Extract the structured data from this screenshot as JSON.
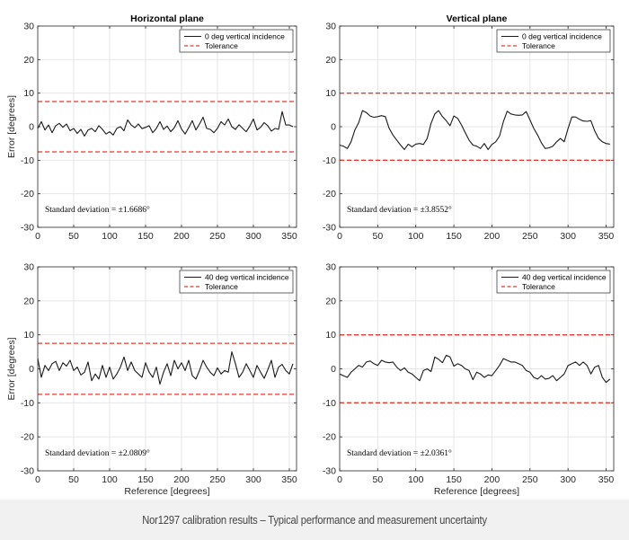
{
  "caption": "Nor1297 calibration results – Typical performance and measurement uncertainty",
  "colors": {
    "series": "#1a1a1a",
    "tolerance": "#e03c31",
    "grid": "#e6e6e6",
    "axis": "#262626",
    "caption_bg": "#f1f1f1"
  },
  "chart_data": [
    {
      "type": "line",
      "title": "Horizontal plane",
      "xlabel": "",
      "ylabel": "Error [degrees]",
      "xlim": [
        0,
        360
      ],
      "ylim": [
        -30,
        30
      ],
      "xticks": [
        0,
        50,
        100,
        150,
        200,
        250,
        300,
        350
      ],
      "yticks": [
        -30,
        -20,
        -10,
        0,
        10,
        20,
        30
      ],
      "grid": true,
      "legend_position": "top-right",
      "annotation": "Standard deviation = ±1.6686°",
      "series": [
        {
          "name": "0 deg vertical incidence",
          "style": "solid",
          "x": [
            0,
            5,
            10,
            15,
            20,
            25,
            30,
            35,
            40,
            45,
            50,
            55,
            60,
            65,
            70,
            75,
            80,
            85,
            90,
            95,
            100,
            105,
            110,
            115,
            120,
            125,
            130,
            135,
            140,
            145,
            150,
            155,
            160,
            165,
            170,
            175,
            180,
            185,
            190,
            195,
            200,
            205,
            210,
            215,
            220,
            225,
            230,
            235,
            240,
            245,
            250,
            255,
            260,
            265,
            270,
            275,
            280,
            285,
            290,
            295,
            300,
            305,
            310,
            315,
            320,
            325,
            330,
            335,
            340,
            345,
            350,
            355
          ],
          "y": [
            -0.5,
            1.5,
            -1.0,
            0.5,
            -1.8,
            0.3,
            1.0,
            -0.2,
            0.8,
            -1.2,
            -0.5,
            -2.0,
            -0.8,
            -2.8,
            -1.0,
            -0.5,
            -1.5,
            0.3,
            -0.8,
            -2.2,
            -1.5,
            -2.5,
            -0.5,
            0.0,
            -1.2,
            2.0,
            0.5,
            -0.3,
            0.8,
            -0.6,
            -0.2,
            0.3,
            -1.8,
            -0.5,
            1.5,
            -0.8,
            0.2,
            -1.5,
            -0.3,
            1.8,
            -0.7,
            -2.2,
            -0.3,
            1.8,
            -1.0,
            0.8,
            2.8,
            -0.5,
            -0.8,
            -1.8,
            -0.5,
            1.5,
            0.5,
            2.3,
            0.0,
            -0.8,
            0.6,
            -0.5,
            -1.5,
            0.2,
            2.3,
            -1.0,
            -0.2,
            1.2,
            0.3,
            -1.3,
            -0.5,
            -0.8,
            4.5,
            0.5,
            0.5,
            0.0
          ]
        },
        {
          "name": "Tolerance",
          "style": "dashed",
          "y_const": [
            7.5,
            -7.5
          ]
        }
      ]
    },
    {
      "type": "line",
      "title": "Vertical plane",
      "xlabel": "",
      "ylabel": "",
      "xlim": [
        0,
        360
      ],
      "ylim": [
        -30,
        30
      ],
      "xticks": [
        0,
        50,
        100,
        150,
        200,
        250,
        300,
        350
      ],
      "yticks": [
        -30,
        -20,
        -10,
        0,
        10,
        20,
        30
      ],
      "grid": true,
      "legend_position": "top-right",
      "annotation": "Standard deviation = ±3.8552°",
      "series": [
        {
          "name": "0 deg vertical incidence",
          "style": "solid",
          "x": [
            0,
            5,
            10,
            15,
            20,
            25,
            30,
            35,
            40,
            45,
            50,
            55,
            60,
            65,
            70,
            75,
            80,
            85,
            90,
            95,
            100,
            105,
            110,
            115,
            120,
            125,
            130,
            135,
            140,
            145,
            150,
            155,
            160,
            165,
            170,
            175,
            180,
            185,
            190,
            195,
            200,
            205,
            210,
            215,
            220,
            225,
            230,
            235,
            240,
            245,
            250,
            255,
            260,
            265,
            270,
            275,
            280,
            285,
            290,
            295,
            300,
            305,
            310,
            315,
            320,
            325,
            330,
            335,
            340,
            345,
            350,
            355
          ],
          "y": [
            -5.5,
            -5.8,
            -6.5,
            -4.5,
            -1.0,
            1.2,
            4.8,
            4.2,
            3.2,
            2.8,
            3.0,
            3.3,
            3.0,
            -0.5,
            -2.5,
            -4.0,
            -5.5,
            -6.8,
            -5.2,
            -6.0,
            -5.2,
            -5.0,
            -5.3,
            -3.5,
            1.0,
            3.8,
            4.8,
            3.0,
            1.8,
            0.3,
            3.2,
            2.5,
            0.5,
            -1.8,
            -4.0,
            -5.5,
            -5.8,
            -6.5,
            -5.0,
            -6.8,
            -5.3,
            -4.5,
            -2.8,
            1.5,
            4.6,
            3.8,
            3.5,
            3.4,
            3.5,
            4.5,
            2.0,
            -0.5,
            -2.5,
            -4.8,
            -6.5,
            -6.3,
            -5.8,
            -4.5,
            -3.5,
            -4.5,
            -0.5,
            2.9,
            2.9,
            2.2,
            1.7,
            1.6,
            1.8,
            -1.2,
            -3.5,
            -4.5,
            -5.0,
            -5.2
          ]
        },
        {
          "name": "Tolerance",
          "style": "dashed",
          "y_const": [
            10,
            -10
          ]
        }
      ]
    },
    {
      "type": "line",
      "title": "",
      "xlabel": "Reference [degrees]",
      "ylabel": "Error [degrees]",
      "xlim": [
        0,
        360
      ],
      "ylim": [
        -30,
        30
      ],
      "xticks": [
        0,
        50,
        100,
        150,
        200,
        250,
        300,
        350
      ],
      "yticks": [
        -30,
        -20,
        -10,
        0,
        10,
        20,
        30
      ],
      "grid": true,
      "legend_position": "top-right",
      "annotation": "Standard deviation = ±2.0809°",
      "series": [
        {
          "name": "40 deg vertical incidence",
          "style": "solid",
          "x": [
            0,
            5,
            10,
            15,
            20,
            25,
            30,
            35,
            40,
            45,
            50,
            55,
            60,
            65,
            70,
            75,
            80,
            85,
            90,
            95,
            100,
            105,
            110,
            115,
            120,
            125,
            130,
            135,
            140,
            145,
            150,
            155,
            160,
            165,
            170,
            175,
            180,
            185,
            190,
            195,
            200,
            205,
            210,
            215,
            220,
            225,
            230,
            235,
            240,
            245,
            250,
            255,
            260,
            265,
            270,
            275,
            280,
            285,
            290,
            295,
            300,
            305,
            310,
            315,
            320,
            325,
            330,
            335,
            340,
            345,
            350,
            355
          ],
          "y": [
            3.0,
            -2.5,
            1.0,
            -0.5,
            1.5,
            2.2,
            -0.5,
            1.8,
            0.8,
            2.5,
            -0.5,
            0.5,
            -1.8,
            -1.0,
            2.0,
            -3.5,
            -1.5,
            -3.0,
            1.0,
            -2.5,
            0.5,
            -3.0,
            -1.5,
            0.5,
            3.5,
            -0.5,
            2.0,
            -0.5,
            -1.5,
            -2.5,
            1.8,
            -1.0,
            -2.5,
            0.5,
            -4.5,
            -1.0,
            1.5,
            -2.0,
            2.5,
            0.0,
            1.8,
            -0.5,
            2.5,
            -2.0,
            -3.0,
            -0.5,
            2.5,
            0.5,
            -1.0,
            -2.0,
            0.3,
            -1.5,
            -0.5,
            -1.0,
            5.0,
            1.5,
            -2.5,
            -1.0,
            1.5,
            -0.5,
            -2.5,
            1.0,
            -1.0,
            -2.8,
            -0.3,
            2.5,
            -2.5,
            0.5,
            1.3,
            -0.5,
            -1.5,
            1.5
          ]
        },
        {
          "name": "Tolerance",
          "style": "dashed",
          "y_const": [
            7.5,
            -7.5
          ]
        }
      ]
    },
    {
      "type": "line",
      "title": "",
      "xlabel": "Reference [degrees]",
      "ylabel": "",
      "xlim": [
        0,
        360
      ],
      "ylim": [
        -30,
        30
      ],
      "xticks": [
        0,
        50,
        100,
        150,
        200,
        250,
        300,
        350
      ],
      "yticks": [
        -30,
        -20,
        -10,
        0,
        10,
        20,
        30
      ],
      "grid": true,
      "legend_position": "top-right",
      "annotation": "Standard deviation = ±2.0361°",
      "series": [
        {
          "name": "40 deg vertical incidence",
          "style": "solid",
          "x": [
            0,
            5,
            10,
            15,
            20,
            25,
            30,
            35,
            40,
            45,
            50,
            55,
            60,
            65,
            70,
            75,
            80,
            85,
            90,
            95,
            100,
            105,
            110,
            115,
            120,
            125,
            130,
            135,
            140,
            145,
            150,
            155,
            160,
            165,
            170,
            175,
            180,
            185,
            190,
            195,
            200,
            205,
            210,
            215,
            220,
            225,
            230,
            235,
            240,
            245,
            250,
            255,
            260,
            265,
            270,
            275,
            280,
            285,
            290,
            295,
            300,
            305,
            310,
            315,
            320,
            325,
            330,
            335,
            340,
            345,
            350,
            355
          ],
          "y": [
            -1.5,
            -2.0,
            -2.5,
            -1.0,
            0.0,
            1.0,
            0.5,
            2.0,
            2.3,
            1.5,
            1.0,
            2.5,
            2.0,
            1.8,
            2.0,
            0.5,
            -0.5,
            0.3,
            -1.0,
            -1.5,
            -2.5,
            -3.5,
            -0.5,
            0.0,
            -0.8,
            3.5,
            2.8,
            1.8,
            4.0,
            3.5,
            0.8,
            1.5,
            1.0,
            0.0,
            -0.5,
            -3.2,
            -1.0,
            -1.5,
            -2.5,
            -1.8,
            -2.0,
            -0.5,
            1.0,
            3.0,
            2.5,
            2.0,
            2.0,
            1.5,
            1.0,
            -0.5,
            -1.0,
            -2.5,
            -3.0,
            -2.0,
            -3.0,
            -2.8,
            -2.0,
            -3.5,
            -2.5,
            -1.5,
            1.0,
            1.5,
            2.0,
            1.0,
            2.0,
            1.0,
            -1.5,
            0.5,
            1.0,
            -2.5,
            -4.0,
            -3.0
          ]
        },
        {
          "name": "Tolerance",
          "style": "dashed",
          "y_const": [
            10,
            -10
          ]
        }
      ]
    }
  ]
}
